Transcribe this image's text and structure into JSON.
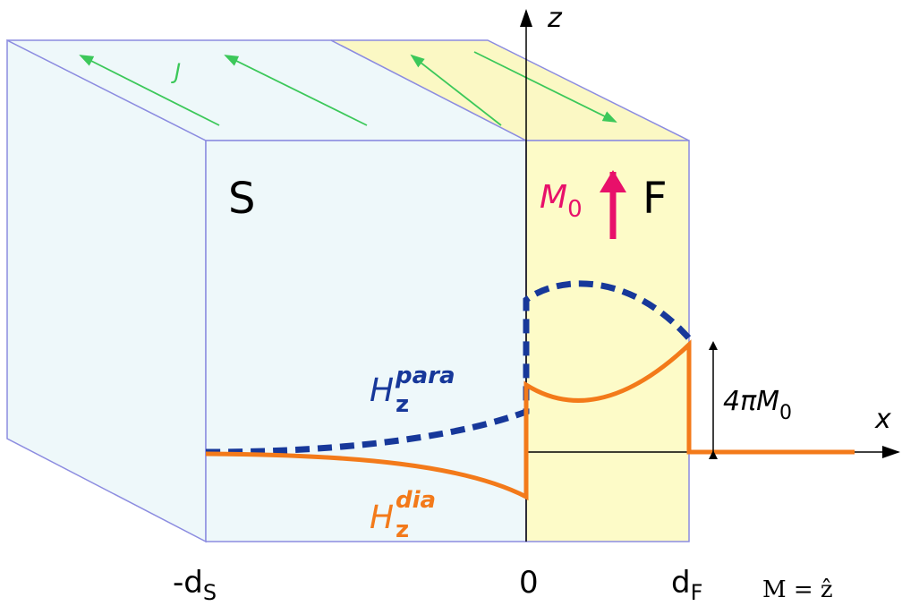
{
  "axes": {
    "z": "z",
    "x": "x"
  },
  "current_label": "J",
  "regions": {
    "s": "S",
    "f": "F"
  },
  "magnetization": {
    "symbol": "M",
    "subscript": "0"
  },
  "curves": {
    "para": {
      "symbol": "H",
      "subscript": "z",
      "superscript": "para"
    },
    "dia": {
      "symbol": "H",
      "subscript": "z",
      "superscript": "dia"
    }
  },
  "jump": {
    "prefix": "4πM",
    "subscript": "0"
  },
  "x_labels": [
    {
      "main": "-d",
      "subscript": "S"
    },
    {
      "main": "0"
    },
    {
      "main": "d",
      "subscript": "F"
    }
  ],
  "equation_fragment": "M = ẑ"
}
